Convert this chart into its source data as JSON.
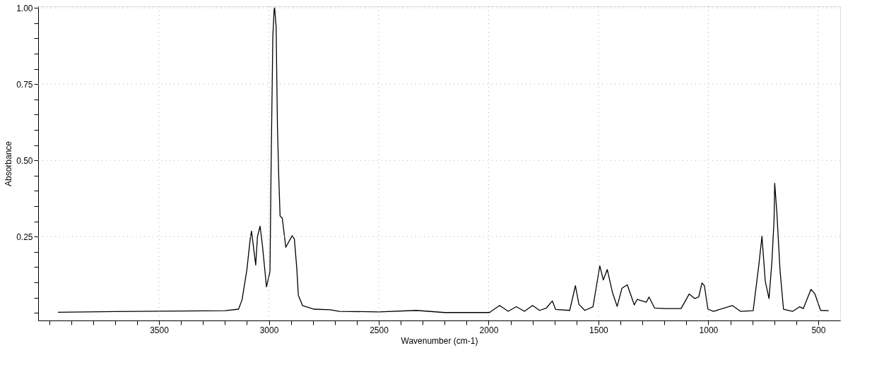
{
  "chart_data": {
    "type": "line",
    "xlabel": "Wavenumber (cm-1)",
    "ylabel": "Absorbance",
    "xlim": [
      4050,
      400
    ],
    "ylim": [
      -0.025,
      1.005
    ],
    "xticks": [
      {
        "value": 4000,
        "label": null
      },
      {
        "value": 3900,
        "label": null
      },
      {
        "value": 3800,
        "label": null
      },
      {
        "value": 3700,
        "label": null
      },
      {
        "value": 3600,
        "label": null
      },
      3500,
      {
        "value": 3400,
        "label": null
      },
      {
        "value": 3300,
        "label": null
      },
      {
        "value": 3200,
        "label": null
      },
      {
        "value": 3100,
        "label": null
      },
      3000,
      {
        "value": 2900,
        "label": null
      },
      {
        "value": 2800,
        "label": null
      },
      {
        "value": 2700,
        "label": null
      },
      {
        "value": 2600,
        "label": null
      },
      2500,
      {
        "value": 2400,
        "label": null
      },
      {
        "value": 2300,
        "label": null
      },
      {
        "value": 2200,
        "label": null
      },
      {
        "value": 2100,
        "label": null
      },
      2000,
      {
        "value": 1900,
        "label": null
      },
      {
        "value": 1800,
        "label": null
      },
      {
        "value": 1700,
        "label": null
      },
      {
        "value": 1600,
        "label": null
      },
      1500,
      {
        "value": 1400,
        "label": null
      },
      {
        "value": 1300,
        "label": null
      },
      {
        "value": 1200,
        "label": null
      },
      {
        "value": 1100,
        "label": null
      },
      1000,
      {
        "value": 900,
        "label": null
      },
      {
        "value": 800,
        "label": null
      },
      {
        "value": 700,
        "label": null
      },
      {
        "value": 600,
        "label": null
      },
      500
    ],
    "yticks": [
      {
        "value": 0,
        "label": null
      },
      {
        "value": 0.05,
        "label": null
      },
      {
        "value": 0.1,
        "label": null
      },
      {
        "value": 0.15,
        "label": null
      },
      {
        "value": 0.2,
        "label": null
      },
      0.25,
      {
        "value": 0.3,
        "label": null
      },
      {
        "value": 0.35,
        "label": null
      },
      {
        "value": 0.4,
        "label": null
      },
      {
        "value": 0.45,
        "label": null
      },
      {
        "value": 0.5,
        "label": "0.50"
      },
      {
        "value": 0.55,
        "label": null
      },
      {
        "value": 0.6,
        "label": null
      },
      {
        "value": 0.65,
        "label": null
      },
      {
        "value": 0.7,
        "label": null
      },
      0.75,
      {
        "value": 0.8,
        "label": null
      },
      {
        "value": 0.85,
        "label": null
      },
      {
        "value": 0.9,
        "label": null
      },
      {
        "value": 0.95,
        "label": null
      },
      {
        "value": 1.0,
        "label": "1.00"
      }
    ],
    "grid": true,
    "marker": "none",
    "line_style": "solid",
    "series": [
      {
        "color": "#000000",
        "x": [
          3960,
          3700,
          3400,
          3200,
          3138,
          3122,
          3100,
          3085,
          3079,
          3060,
          3052,
          3040,
          3029,
          3011,
          2995,
          2990,
          2982,
          2976,
          2974,
          2967,
          2961,
          2955,
          2949,
          2939,
          2923,
          2894,
          2884,
          2873,
          2866,
          2847,
          2794,
          2720,
          2679,
          2500,
          2329,
          2200,
          1996,
          1950,
          1911,
          1874,
          1837,
          1800,
          1768,
          1737,
          1710,
          1695,
          1631,
          1605,
          1589,
          1562,
          1525,
          1509,
          1494,
          1478,
          1460,
          1436,
          1415,
          1393,
          1369,
          1337,
          1324,
          1282,
          1270,
          1245,
          1198,
          1124,
          1087,
          1062,
          1044,
          1029,
          1018,
          1002,
          976,
          891,
          854,
          796,
          770,
          756,
          741,
          724,
          711,
          701,
          698,
          688,
          674,
          658,
          616,
          584,
          568,
          533,
          515,
          489,
          452
        ],
        "values": [
          0.002,
          0.004,
          0.006,
          0.007,
          0.012,
          0.043,
          0.142,
          0.242,
          0.268,
          0.157,
          0.25,
          0.284,
          0.219,
          0.085,
          0.135,
          0.471,
          0.907,
          0.995,
          1.0,
          0.938,
          0.609,
          0.445,
          0.318,
          0.31,
          0.215,
          0.253,
          0.242,
          0.146,
          0.058,
          0.024,
          0.012,
          0.01,
          0.005,
          0.003,
          0.008,
          0.001,
          0.001,
          0.024,
          0.005,
          0.02,
          0.005,
          0.024,
          0.008,
          0.016,
          0.039,
          0.011,
          0.008,
          0.089,
          0.028,
          0.008,
          0.02,
          0.089,
          0.154,
          0.108,
          0.142,
          0.066,
          0.021,
          0.081,
          0.092,
          0.026,
          0.044,
          0.035,
          0.052,
          0.016,
          0.014,
          0.014,
          0.062,
          0.047,
          0.052,
          0.098,
          0.089,
          0.012,
          0.005,
          0.024,
          0.005,
          0.007,
          0.158,
          0.251,
          0.104,
          0.047,
          0.165,
          0.303,
          0.425,
          0.326,
          0.142,
          0.012,
          0.005,
          0.02,
          0.014,
          0.077,
          0.062,
          0.008,
          0.007
        ]
      }
    ]
  }
}
